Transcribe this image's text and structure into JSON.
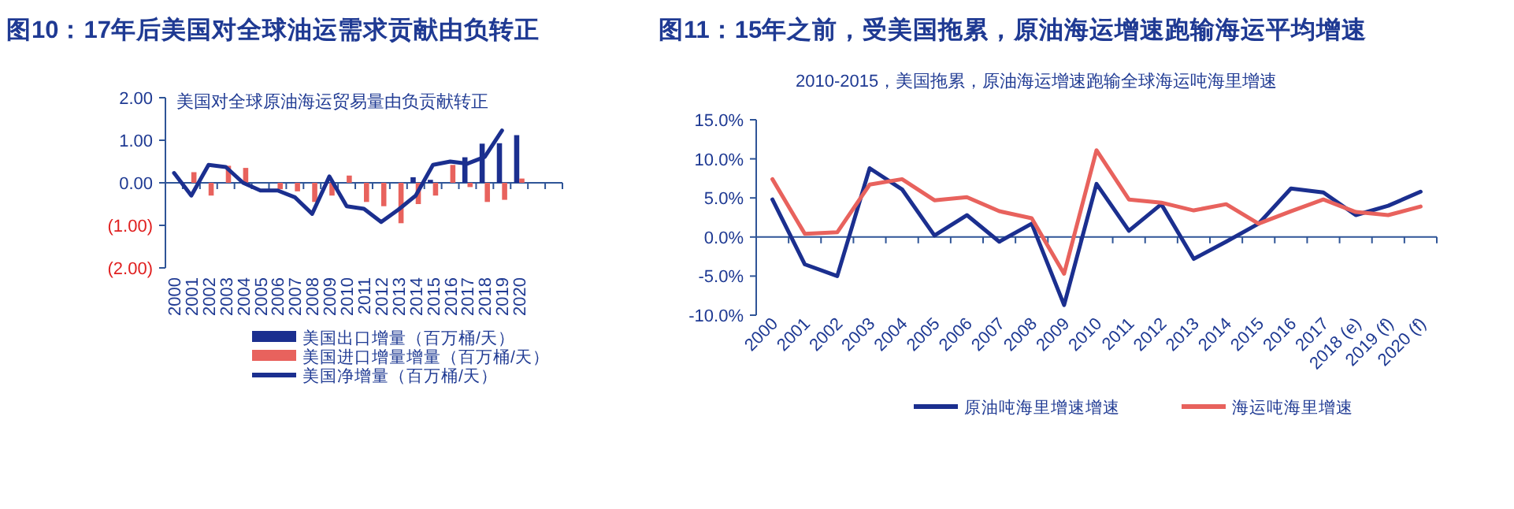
{
  "chart_data": [
    {
      "type": "bar",
      "title": "图10：17年后美国对全球油运需求贡献由负转正",
      "subtitle": "美国对全球原油海运贸易量由负贡献转正",
      "categories": [
        "2000",
        "2001",
        "2002",
        "2003",
        "2004",
        "2005",
        "2006",
        "2007",
        "2008",
        "2009",
        "2010",
        "2011",
        "2012",
        "2013",
        "2014",
        "2015",
        "2016",
        "2017",
        "2018",
        "2019",
        "2020",
        null,
        null
      ],
      "series": [
        {
          "name": "美国出口增量（百万桶/天）",
          "color": "#1b2f8f",
          "values": [
            null,
            null,
            null,
            null,
            null,
            null,
            null,
            null,
            null,
            null,
            null,
            null,
            null,
            null,
            0.13,
            0.07,
            null,
            0.6,
            0.92,
            0.93,
            1.12,
            null,
            null
          ]
        },
        {
          "name": "美国进口增量增量（百万桶/天）",
          "color": "#e8625d",
          "values": [
            null,
            0.25,
            -0.3,
            0.4,
            0.35,
            null,
            -0.15,
            -0.2,
            -0.45,
            -0.3,
            0.17,
            -0.45,
            -0.55,
            -0.95,
            -0.5,
            -0.3,
            0.42,
            -0.1,
            -0.45,
            -0.4,
            0.1,
            null,
            null
          ]
        },
        {
          "name": "美国净增量（百万桶/天）",
          "type": "line",
          "color": "#1b2f8f",
          "values": [
            0.23,
            -0.3,
            0.42,
            0.37,
            0.0,
            -0.18,
            -0.18,
            -0.34,
            -0.73,
            0.15,
            -0.55,
            -0.61,
            -0.92,
            -0.63,
            -0.3,
            0.42,
            0.5,
            0.45,
            0.61,
            1.23,
            null,
            null,
            null
          ]
        }
      ],
      "ylim": [
        -2,
        2
      ],
      "yticks": [
        {
          "value": 2,
          "label": "2.00"
        },
        {
          "value": 1,
          "label": "1.00"
        },
        {
          "value": 0,
          "label": "0.00"
        },
        {
          "value": -1,
          "label": "(1.00)"
        },
        {
          "value": -2,
          "label": "(2.00)"
        }
      ],
      "ref_lines": [
        {
          "axis": "y",
          "value": 0,
          "color": "#2f5597"
        }
      ],
      "legend": "bottom"
    },
    {
      "type": "line",
      "title": "图11：15年之前，受美国拖累，原油海运增速跑输海运平均增速",
      "subtitle": "2010-2015，美国拖累，原油海运增速跑输全球海运吨海里增速",
      "categories": [
        "2000",
        "2001",
        "2002",
        "2003",
        "2004",
        "2005",
        "2006",
        "2007",
        "2008",
        "2009",
        "2010",
        "2011",
        "2012",
        "2013",
        "2014",
        "2015",
        "2016",
        "2017",
        "2018 (e)",
        "2019 (f)",
        "2020 (f)"
      ],
      "series": [
        {
          "name": "原油吨海里增速增速",
          "color": "#1b2f8f",
          "values": [
            4.8,
            -3.5,
            -5.0,
            8.8,
            6.1,
            0.2,
            2.8,
            -0.6,
            1.7,
            -8.7,
            6.8,
            0.8,
            4.2,
            -2.8,
            -0.6,
            1.7,
            6.2,
            5.7,
            2.8,
            4.0,
            5.8
          ]
        },
        {
          "name": "海运吨海里增速",
          "color": "#e8625d",
          "values": [
            7.4,
            0.4,
            0.6,
            6.7,
            7.4,
            4.7,
            5.1,
            3.3,
            2.4,
            -4.7,
            11.1,
            4.8,
            4.4,
            3.4,
            4.2,
            1.7,
            3.3,
            4.8,
            3.2,
            2.8,
            3.9
          ]
        }
      ],
      "ylim": [
        -10,
        15
      ],
      "yticks": [
        {
          "value": 15,
          "label": "15.0%"
        },
        {
          "value": 10,
          "label": "10.0%"
        },
        {
          "value": 5,
          "label": "5.0%"
        },
        {
          "value": 0,
          "label": "0.0%"
        },
        {
          "value": -5,
          "label": "-5.0%"
        },
        {
          "value": -10,
          "label": "-10.0%"
        }
      ],
      "ref_lines": [
        {
          "axis": "y",
          "value": 0,
          "color": "#2f5597"
        }
      ],
      "legend": "bottom"
    }
  ]
}
